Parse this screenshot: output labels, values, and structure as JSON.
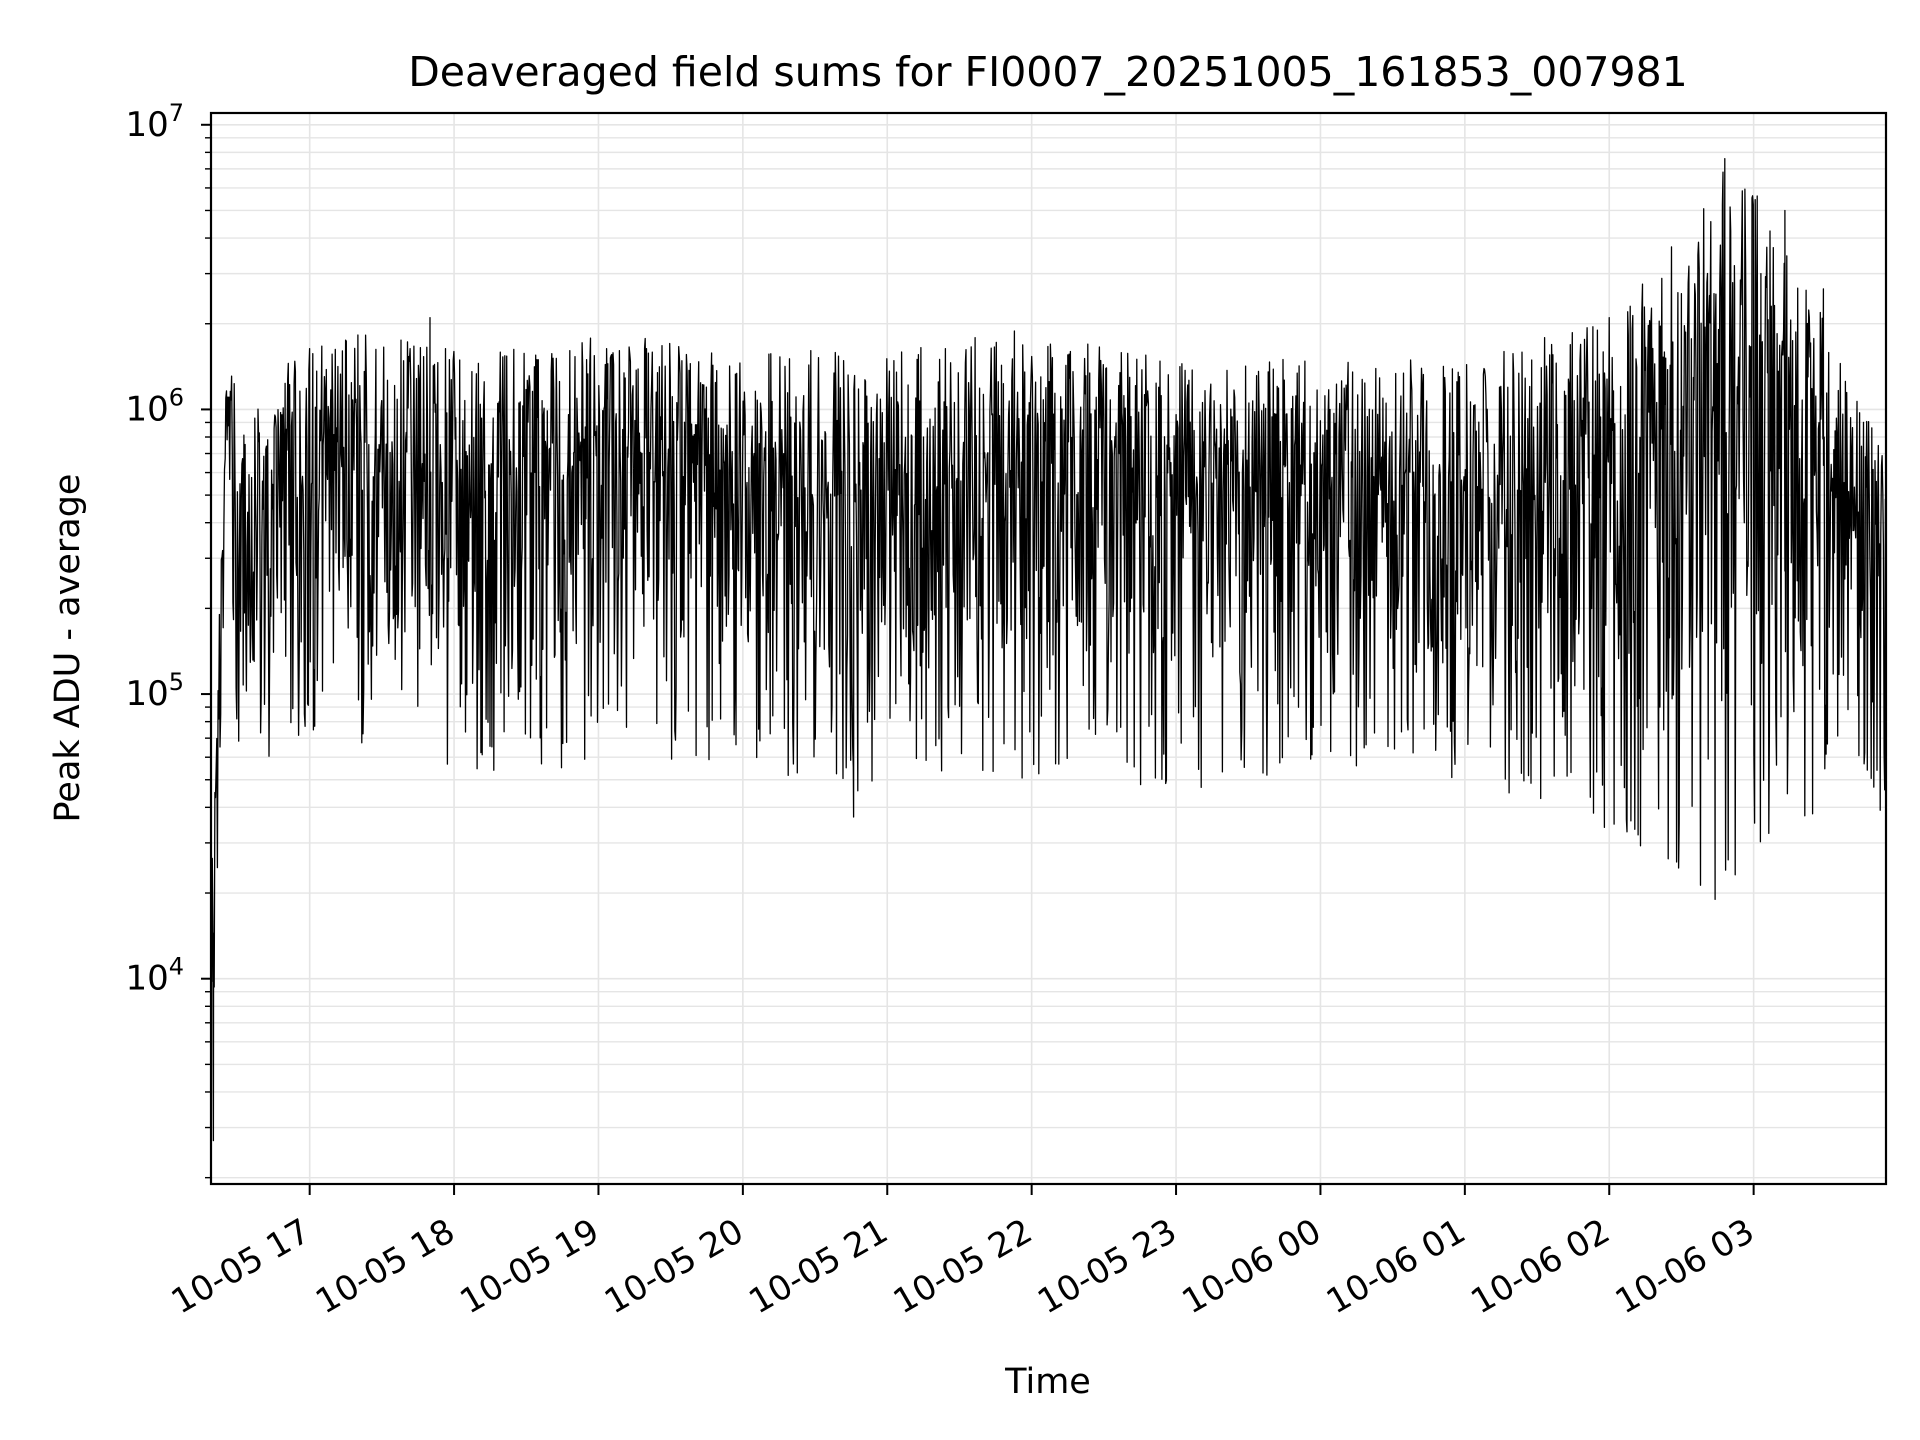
{
  "chart_data": {
    "type": "line",
    "title": "Deaveraged field sums for FI0007_20251005_161853_007981",
    "xlabel": "Time",
    "ylabel": "Peak ADU - average",
    "yscale": "log",
    "ylim": [
      1900,
      11000000
    ],
    "xlim": [
      "2025-10-05 16:19",
      "2025-10-06 03:55"
    ],
    "grid": true,
    "line_color": "#000000",
    "grid_color": "#e5e5e5",
    "x_ticks": [
      {
        "value": "2025-10-05 17:00",
        "label": "10-05 17"
      },
      {
        "value": "2025-10-05 18:00",
        "label": "10-05 18"
      },
      {
        "value": "2025-10-05 19:00",
        "label": "10-05 19"
      },
      {
        "value": "2025-10-05 20:00",
        "label": "10-05 20"
      },
      {
        "value": "2025-10-05 21:00",
        "label": "10-05 21"
      },
      {
        "value": "2025-10-05 22:00",
        "label": "10-05 22"
      },
      {
        "value": "2025-10-05 23:00",
        "label": "10-05 23"
      },
      {
        "value": "2025-10-06 00:00",
        "label": "10-06 00"
      },
      {
        "value": "2025-10-06 01:00",
        "label": "10-06 01"
      },
      {
        "value": "2025-10-06 02:00",
        "label": "10-06 02"
      },
      {
        "value": "2025-10-06 03:00",
        "label": "10-06 03"
      }
    ],
    "y_ticks": [
      {
        "value": 10000,
        "base": "10",
        "exp": "4"
      },
      {
        "value": 100000,
        "base": "10",
        "exp": "5"
      },
      {
        "value": 1000000,
        "base": "10",
        "exp": "6"
      },
      {
        "value": 10000000,
        "base": "10",
        "exp": "7"
      }
    ],
    "series_envelope": {
      "description_of_values": "approximate upper/lower envelope of the dense per-frame signal, Peak ADU - average",
      "points": [
        {
          "t": "2025-10-05 16:19",
          "high": 25000,
          "low": 2700
        },
        {
          "t": "2025-10-05 16:23",
          "high": 320000,
          "low": 22000
        },
        {
          "t": "2025-10-05 16:26",
          "high": 1900000,
          "low": 900000
        },
        {
          "t": "2025-10-05 16:30",
          "high": 1000000,
          "low": 50000
        },
        {
          "t": "2025-10-05 17:00",
          "high": 1700000,
          "low": 75000
        },
        {
          "t": "2025-10-05 17:30",
          "high": 2000000,
          "low": 60000
        },
        {
          "t": "2025-10-05 18:00",
          "high": 1600000,
          "low": 55000
        },
        {
          "t": "2025-10-05 18:45",
          "high": 1700000,
          "low": 50000
        },
        {
          "t": "2025-10-05 19:00",
          "high": 1900000,
          "low": 60000
        },
        {
          "t": "2025-10-05 20:00",
          "high": 1600000,
          "low": 55000
        },
        {
          "t": "2025-10-05 20:45",
          "high": 1700000,
          "low": 37000
        },
        {
          "t": "2025-10-05 21:00",
          "high": 1600000,
          "low": 55000
        },
        {
          "t": "2025-10-05 21:50",
          "high": 1950000,
          "low": 50000
        },
        {
          "t": "2025-10-05 23:00",
          "high": 1500000,
          "low": 45000
        },
        {
          "t": "2025-10-06 00:00",
          "high": 1500000,
          "low": 55000
        },
        {
          "t": "2025-10-06 01:00",
          "high": 1500000,
          "low": 50000
        },
        {
          "t": "2025-10-06 02:00",
          "high": 2100000,
          "low": 33000
        },
        {
          "t": "2025-10-06 02:45",
          "high": 7600000,
          "low": 19000
        },
        {
          "t": "2025-10-06 03:10",
          "high": 5000000,
          "low": 35000
        },
        {
          "t": "2025-10-06 03:55",
          "high": 700000,
          "low": 37000
        }
      ],
      "notable_peaks": [
        {
          "t": "2025-10-05 17:50",
          "value": 2100000
        },
        {
          "t": "2025-10-06 02:00",
          "value": 2100000
        },
        {
          "t": "2025-10-06 02:30",
          "value": 2550000
        },
        {
          "t": "2025-10-06 02:48",
          "value": 7600000
        },
        {
          "t": "2025-10-06 02:52",
          "value": 3200000
        },
        {
          "t": "2025-10-06 03:03",
          "value": 3000000
        },
        {
          "t": "2025-10-06 03:13",
          "value": 5000000
        },
        {
          "t": "2025-10-06 03:29",
          "value": 2650000
        }
      ],
      "notable_dips": [
        {
          "t": "2025-10-05 16:20",
          "value": 2700
        },
        {
          "t": "2025-10-05 20:46",
          "value": 37000
        },
        {
          "t": "2025-10-06 01:58",
          "value": 34000
        },
        {
          "t": "2025-10-06 02:12",
          "value": 32000
        },
        {
          "t": "2025-10-06 02:44",
          "value": 19000
        },
        {
          "t": "2025-10-06 03:55",
          "value": 37000
        }
      ]
    }
  }
}
